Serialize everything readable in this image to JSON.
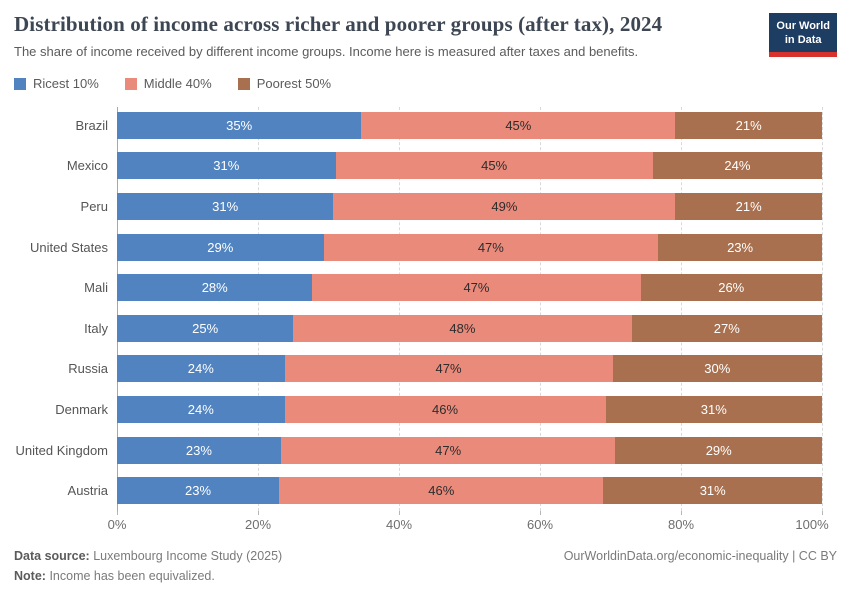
{
  "header": {
    "title": "Distribution of income across richer and poorer groups (after tax), 2024",
    "subtitle": "The share of income received by different income groups. Income here is measured after taxes and benefits.",
    "logo": {
      "line1": "Our World",
      "line2": "in Data",
      "bg_color": "#1d3d63",
      "accent_color": "#d7332c"
    }
  },
  "chart_data": {
    "type": "bar",
    "orientation": "horizontal",
    "stacked": true,
    "normalized": true,
    "grid": true,
    "legend_position": "top",
    "value_suffix": "%",
    "title": "Distribution of income across richer and poorer groups (after tax), 2024",
    "xlabel": "",
    "ylabel": "",
    "xlim": [
      0,
      100
    ],
    "x_ticks": [
      "0%",
      "20%",
      "40%",
      "60%",
      "80%",
      "100%"
    ],
    "categories": [
      "Brazil",
      "Mexico",
      "Peru",
      "United States",
      "Mali",
      "Italy",
      "Russia",
      "Denmark",
      "United Kingdom",
      "Austria"
    ],
    "series": [
      {
        "name": "Ricest 10%",
        "color": "#5083c0",
        "label_color": "#ffffff",
        "values": [
          35,
          31,
          31,
          29,
          28,
          25,
          24,
          24,
          23,
          23
        ]
      },
      {
        "name": "Middle 40%",
        "color": "#ea8a7b",
        "label_color": "#2d2d2d",
        "values": [
          45,
          45,
          49,
          47,
          47,
          48,
          47,
          46,
          47,
          46
        ]
      },
      {
        "name": "Poorest 50%",
        "color": "#a8704e",
        "label_color": "#ffffff",
        "values": [
          21,
          24,
          21,
          23,
          26,
          27,
          30,
          31,
          29,
          31
        ]
      }
    ]
  },
  "footer": {
    "source_label": "Data source:",
    "source_text": "Luxembourg Income Study (2025)",
    "note_label": "Note:",
    "note_text": "Income has been equivalized.",
    "link": "OurWorldinData.org/economic-inequality",
    "separator": "|",
    "license": "CC BY"
  }
}
